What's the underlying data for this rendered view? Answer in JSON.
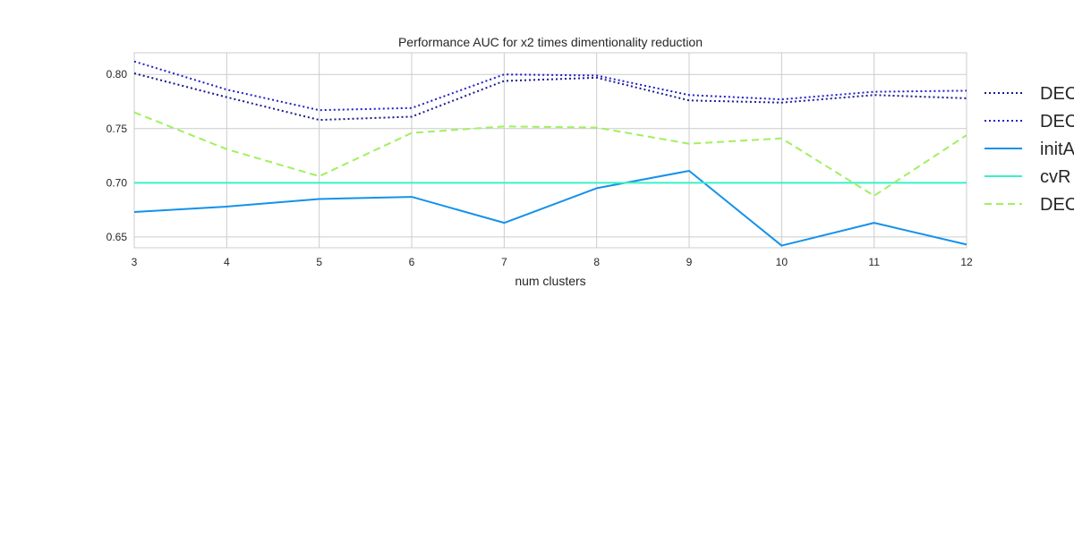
{
  "chart_data": {
    "type": "line",
    "title": "Performance AUC for x2 times dimentionality reduction",
    "xlabel": "num clusters",
    "ylabel": "",
    "x": [
      3,
      4,
      5,
      6,
      7,
      8,
      9,
      10,
      11,
      12
    ],
    "xlim": [
      3,
      12
    ],
    "ylim": [
      0.64,
      0.82
    ],
    "xticks": [
      "3",
      "4",
      "5",
      "6",
      "7",
      "8",
      "9",
      "10",
      "11",
      "12"
    ],
    "yticks": [
      "0.65",
      "0.70",
      "0.75",
      "0.80"
    ],
    "grid": true,
    "legend_position": "right, outside plot area (clipped)",
    "series": [
      {
        "name": "DEC",
        "color": "#1a1a8c",
        "style": "dotted",
        "values": [
          0.801,
          0.779,
          0.758,
          0.761,
          0.794,
          0.797,
          0.776,
          0.774,
          0.781,
          0.778
        ]
      },
      {
        "name": "DEC",
        "color": "#2020c8",
        "style": "dotted",
        "values": [
          0.812,
          0.786,
          0.767,
          0.769,
          0.8,
          0.799,
          0.781,
          0.777,
          0.784,
          0.785
        ]
      },
      {
        "name": "initA",
        "color": "#1591ea",
        "style": "solid",
        "values": [
          0.673,
          0.678,
          0.685,
          0.687,
          0.663,
          0.695,
          0.711,
          0.642,
          0.663,
          0.643
        ]
      },
      {
        "name": "cvR",
        "color": "#3af0c8",
        "style": "solid",
        "values": [
          0.7,
          0.7,
          0.7,
          0.7,
          0.7,
          0.7,
          0.7,
          0.7,
          0.7,
          0.7
        ]
      },
      {
        "name": "DEC",
        "color": "#a0f060",
        "style": "dashed",
        "values": [
          0.765,
          0.731,
          0.706,
          0.746,
          0.752,
          0.751,
          0.736,
          0.741,
          0.688,
          0.744
        ]
      }
    ]
  }
}
